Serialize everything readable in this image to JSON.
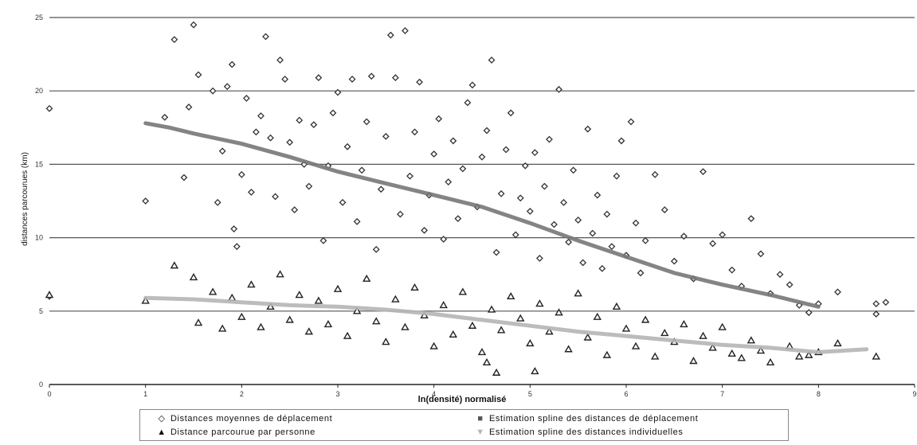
{
  "chart_data": {
    "type": "scatter",
    "title": "",
    "xlabel": "ln(densité) normalisé",
    "ylabel": "distances parcourues (km)",
    "xlim": [
      0,
      9
    ],
    "ylim": [
      0,
      25
    ],
    "x_ticks": [
      "0",
      "1",
      "2",
      "3",
      "4",
      "5",
      "6",
      "7",
      "8",
      "9"
    ],
    "y_ticks": [
      "0",
      "5",
      "10",
      "15",
      "20",
      "25"
    ],
    "grid": "horizontal",
    "legend_position": "bottom",
    "series": [
      {
        "name": "Distances moyennes de déplacement",
        "kind": "scatter",
        "marker": "diamond",
        "color": "#333333",
        "points_note": "cloud of several hundred points; representative sample",
        "points": [
          [
            0,
            18.8
          ],
          [
            0,
            6.0
          ],
          [
            1.0,
            12.5
          ],
          [
            1.2,
            18.2
          ],
          [
            1.3,
            23.5
          ],
          [
            1.4,
            14.1
          ],
          [
            1.45,
            18.9
          ],
          [
            1.5,
            24.5
          ],
          [
            1.55,
            21.1
          ],
          [
            1.7,
            20.0
          ],
          [
            1.75,
            12.4
          ],
          [
            1.8,
            15.9
          ],
          [
            1.85,
            20.3
          ],
          [
            1.9,
            21.8
          ],
          [
            1.92,
            10.6
          ],
          [
            1.95,
            9.4
          ],
          [
            2.0,
            14.3
          ],
          [
            2.05,
            19.5
          ],
          [
            2.1,
            13.1
          ],
          [
            2.15,
            17.2
          ],
          [
            2.2,
            18.3
          ],
          [
            2.25,
            23.7
          ],
          [
            2.3,
            16.8
          ],
          [
            2.35,
            12.8
          ],
          [
            2.4,
            22.1
          ],
          [
            2.45,
            20.8
          ],
          [
            2.5,
            16.5
          ],
          [
            2.55,
            11.9
          ],
          [
            2.6,
            18.0
          ],
          [
            2.65,
            15.0
          ],
          [
            2.7,
            13.5
          ],
          [
            2.75,
            17.7
          ],
          [
            2.8,
            20.9
          ],
          [
            2.85,
            9.8
          ],
          [
            2.9,
            14.9
          ],
          [
            2.95,
            18.5
          ],
          [
            3.0,
            19.9
          ],
          [
            3.05,
            12.4
          ],
          [
            3.1,
            16.2
          ],
          [
            3.15,
            20.8
          ],
          [
            3.2,
            11.1
          ],
          [
            3.25,
            14.6
          ],
          [
            3.3,
            17.9
          ],
          [
            3.35,
            21.0
          ],
          [
            3.4,
            9.2
          ],
          [
            3.45,
            13.3
          ],
          [
            3.5,
            16.9
          ],
          [
            3.55,
            23.8
          ],
          [
            3.6,
            20.9
          ],
          [
            3.65,
            11.6
          ],
          [
            3.7,
            24.1
          ],
          [
            3.75,
            14.2
          ],
          [
            3.8,
            17.2
          ],
          [
            3.85,
            20.6
          ],
          [
            3.9,
            10.5
          ],
          [
            3.95,
            12.9
          ],
          [
            4.0,
            15.7
          ],
          [
            4.05,
            18.1
          ],
          [
            4.1,
            9.9
          ],
          [
            4.15,
            13.8
          ],
          [
            4.2,
            16.6
          ],
          [
            4.25,
            11.3
          ],
          [
            4.3,
            14.7
          ],
          [
            4.35,
            19.2
          ],
          [
            4.4,
            20.4
          ],
          [
            4.45,
            12.1
          ],
          [
            4.5,
            15.5
          ],
          [
            4.55,
            17.3
          ],
          [
            4.6,
            22.1
          ],
          [
            4.65,
            9.0
          ],
          [
            4.7,
            13.0
          ],
          [
            4.75,
            16.0
          ],
          [
            4.8,
            18.5
          ],
          [
            4.85,
            10.2
          ],
          [
            4.9,
            12.7
          ],
          [
            4.95,
            14.9
          ],
          [
            5.0,
            11.8
          ],
          [
            5.05,
            15.8
          ],
          [
            5.1,
            8.6
          ],
          [
            5.15,
            13.5
          ],
          [
            5.2,
            16.7
          ],
          [
            5.25,
            10.9
          ],
          [
            5.3,
            20.1
          ],
          [
            5.35,
            12.4
          ],
          [
            5.4,
            9.7
          ],
          [
            5.45,
            14.6
          ],
          [
            5.5,
            11.2
          ],
          [
            5.55,
            8.3
          ],
          [
            5.6,
            17.4
          ],
          [
            5.65,
            10.3
          ],
          [
            5.7,
            12.9
          ],
          [
            5.75,
            7.9
          ],
          [
            5.8,
            11.6
          ],
          [
            5.85,
            9.4
          ],
          [
            5.9,
            14.2
          ],
          [
            5.95,
            16.6
          ],
          [
            6.0,
            8.8
          ],
          [
            6.05,
            17.9
          ],
          [
            6.1,
            11.0
          ],
          [
            6.15,
            7.6
          ],
          [
            6.2,
            9.8
          ],
          [
            6.3,
            14.3
          ],
          [
            6.4,
            11.9
          ],
          [
            6.5,
            8.4
          ],
          [
            6.6,
            10.1
          ],
          [
            6.7,
            7.2
          ],
          [
            6.8,
            14.5
          ],
          [
            6.9,
            9.6
          ],
          [
            7.0,
            10.2
          ],
          [
            7.1,
            7.8
          ],
          [
            7.2,
            6.7
          ],
          [
            7.3,
            11.3
          ],
          [
            7.4,
            8.9
          ],
          [
            7.5,
            6.2
          ],
          [
            7.6,
            7.5
          ],
          [
            7.7,
            6.8
          ],
          [
            7.8,
            5.4
          ],
          [
            7.9,
            4.9
          ],
          [
            8.0,
            5.5
          ],
          [
            8.2,
            6.3
          ],
          [
            8.6,
            5.5
          ],
          [
            8.7,
            5.6
          ],
          [
            8.6,
            4.8
          ]
        ]
      },
      {
        "name": "Distance parcourue par personne",
        "kind": "scatter",
        "marker": "triangle",
        "color": "#222222",
        "points_note": "dense band between 2 and 7; representative sample",
        "points": [
          [
            0,
            6.1
          ],
          [
            1.0,
            5.7
          ],
          [
            1.3,
            8.1
          ],
          [
            1.5,
            7.3
          ],
          [
            1.55,
            4.2
          ],
          [
            1.7,
            6.3
          ],
          [
            1.8,
            3.8
          ],
          [
            1.9,
            5.9
          ],
          [
            2.0,
            4.6
          ],
          [
            2.1,
            6.8
          ],
          [
            2.2,
            3.9
          ],
          [
            2.3,
            5.3
          ],
          [
            2.4,
            7.5
          ],
          [
            2.5,
            4.4
          ],
          [
            2.6,
            6.1
          ],
          [
            2.7,
            3.6
          ],
          [
            2.8,
            5.7
          ],
          [
            2.9,
            4.1
          ],
          [
            3.0,
            6.5
          ],
          [
            3.1,
            3.3
          ],
          [
            3.2,
            5.0
          ],
          [
            3.3,
            7.2
          ],
          [
            3.4,
            4.3
          ],
          [
            3.5,
            2.9
          ],
          [
            3.6,
            5.8
          ],
          [
            3.7,
            3.9
          ],
          [
            3.8,
            6.6
          ],
          [
            3.9,
            4.7
          ],
          [
            4.0,
            2.6
          ],
          [
            4.1,
            5.4
          ],
          [
            4.2,
            3.4
          ],
          [
            4.3,
            6.3
          ],
          [
            4.4,
            4.0
          ],
          [
            4.5,
            2.2
          ],
          [
            4.55,
            1.5
          ],
          [
            4.6,
            5.1
          ],
          [
            4.65,
            0.8
          ],
          [
            4.7,
            3.7
          ],
          [
            4.8,
            6.0
          ],
          [
            4.9,
            4.5
          ],
          [
            5.0,
            2.8
          ],
          [
            5.05,
            0.9
          ],
          [
            5.1,
            5.5
          ],
          [
            5.2,
            3.6
          ],
          [
            5.3,
            4.9
          ],
          [
            5.4,
            2.4
          ],
          [
            5.5,
            6.2
          ],
          [
            5.6,
            3.2
          ],
          [
            5.7,
            4.6
          ],
          [
            5.8,
            2.0
          ],
          [
            5.9,
            5.3
          ],
          [
            6.0,
            3.8
          ],
          [
            6.1,
            2.6
          ],
          [
            6.2,
            4.4
          ],
          [
            6.3,
            1.9
          ],
          [
            6.4,
            3.5
          ],
          [
            6.5,
            2.9
          ],
          [
            6.6,
            4.1
          ],
          [
            6.7,
            1.6
          ],
          [
            6.8,
            3.3
          ],
          [
            6.9,
            2.5
          ],
          [
            7.0,
            3.9
          ],
          [
            7.1,
            2.1
          ],
          [
            7.2,
            1.8
          ],
          [
            7.3,
            3.0
          ],
          [
            7.4,
            2.3
          ],
          [
            7.5,
            1.5
          ],
          [
            7.7,
            2.6
          ],
          [
            7.8,
            1.9
          ],
          [
            7.9,
            2.0
          ],
          [
            8.0,
            2.2
          ],
          [
            8.2,
            2.8
          ],
          [
            8.6,
            1.9
          ]
        ]
      },
      {
        "name": "Estimation spline des distances de déplacement",
        "kind": "line",
        "color": "#777777",
        "points": [
          [
            1.0,
            17.8
          ],
          [
            1.25,
            17.5
          ],
          [
            1.5,
            17.1
          ],
          [
            2.0,
            16.4
          ],
          [
            2.5,
            15.5
          ],
          [
            3.0,
            14.5
          ],
          [
            3.5,
            13.7
          ],
          [
            4.0,
            12.9
          ],
          [
            4.5,
            12.1
          ],
          [
            5.0,
            11.0
          ],
          [
            5.5,
            9.8
          ],
          [
            6.0,
            8.7
          ],
          [
            6.5,
            7.6
          ],
          [
            7.0,
            6.8
          ],
          [
            7.5,
            6.1
          ],
          [
            8.0,
            5.3
          ]
        ]
      },
      {
        "name": "Estimation spline des distances individuelles",
        "kind": "line",
        "color": "#b5b5b5",
        "points": [
          [
            1.0,
            5.9
          ],
          [
            1.5,
            5.8
          ],
          [
            2.0,
            5.6
          ],
          [
            2.5,
            5.4
          ],
          [
            3.0,
            5.3
          ],
          [
            3.5,
            5.1
          ],
          [
            4.0,
            4.8
          ],
          [
            4.5,
            4.4
          ],
          [
            5.0,
            4.0
          ],
          [
            5.5,
            3.6
          ],
          [
            6.0,
            3.3
          ],
          [
            6.5,
            3.0
          ],
          [
            7.0,
            2.7
          ],
          [
            7.5,
            2.5
          ],
          [
            8.0,
            2.2
          ],
          [
            8.5,
            2.4
          ]
        ]
      }
    ]
  }
}
